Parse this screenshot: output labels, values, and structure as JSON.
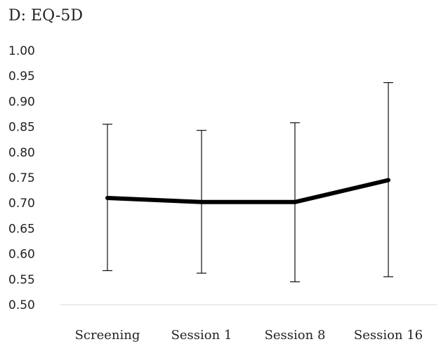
{
  "chart_data": {
    "type": "line",
    "title": "D: EQ-5D",
    "xlabel": "",
    "ylabel": "",
    "categories": [
      "Screening",
      "Session 1",
      "Session 8",
      "Session 16"
    ],
    "series": [
      {
        "values": [
          0.71,
          0.702,
          0.702,
          0.745
        ],
        "error_upper": [
          0.855,
          0.843,
          0.858,
          0.937
        ],
        "error_lower": [
          0.567,
          0.562,
          0.545,
          0.555
        ]
      }
    ],
    "ylim": [
      0.5,
      1.0
    ],
    "yticks": [
      "1.00",
      "0.95",
      "0.90",
      "0.85",
      "0.80",
      "0.75",
      "0.70",
      "0.65",
      "0.60",
      "0.55",
      "0.50"
    ],
    "grid": false,
    "line_color": "#000000",
    "axis_color": "#d9d9d9"
  }
}
